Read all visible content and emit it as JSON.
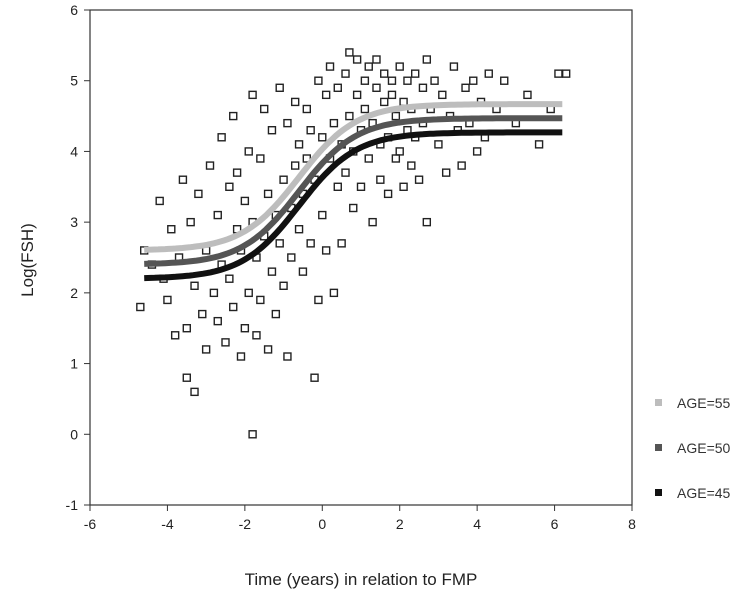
{
  "chart_data": {
    "type": "scatter",
    "xlabel": "Time (years) in relation to FMP",
    "ylabel": "Log(FSH)",
    "xlim": [
      -6,
      8
    ],
    "ylim": [
      -1,
      6
    ],
    "xticks": [
      -6,
      -4,
      -2,
      0,
      2,
      4,
      6,
      8
    ],
    "yticks": [
      -1,
      0,
      1,
      2,
      3,
      4,
      5,
      6
    ],
    "xtick_labels": [
      "-6",
      "-4",
      "-2",
      "0",
      "2",
      "4",
      "6",
      "8"
    ],
    "ytick_labels": [
      "-1",
      "0",
      "1",
      "2",
      "3",
      "4",
      "5",
      "6"
    ],
    "grid": false,
    "legend_position": "right",
    "series": [
      {
        "name": "AGE=55",
        "type": "line",
        "color": "#bdbdbd",
        "curve": {
          "lower": 2.6,
          "upper": 4.67,
          "midpoint": -0.6,
          "slope": 1.35
        },
        "x_range": [
          -4.6,
          6.2
        ]
      },
      {
        "name": "AGE=50",
        "type": "line",
        "color": "#555555",
        "curve": {
          "lower": 2.4,
          "upper": 4.47,
          "midpoint": -0.6,
          "slope": 1.35
        },
        "x_range": [
          -4.6,
          6.2
        ]
      },
      {
        "name": "AGE=45",
        "type": "line",
        "color": "#111111",
        "curve": {
          "lower": 2.2,
          "upper": 4.27,
          "midpoint": -0.6,
          "slope": 1.35
        },
        "x_range": [
          -4.6,
          6.2
        ]
      }
    ],
    "points": [
      [
        -4.7,
        1.8
      ],
      [
        -4.6,
        2.6
      ],
      [
        -4.4,
        2.4
      ],
      [
        -4.2,
        3.3
      ],
      [
        -4.1,
        2.2
      ],
      [
        -4.0,
        1.9
      ],
      [
        -3.9,
        2.9
      ],
      [
        -3.8,
        1.4
      ],
      [
        -3.7,
        2.5
      ],
      [
        -3.6,
        3.6
      ],
      [
        -3.5,
        0.8
      ],
      [
        -3.5,
        1.5
      ],
      [
        -3.4,
        3.0
      ],
      [
        -3.3,
        2.1
      ],
      [
        -3.3,
        0.6
      ],
      [
        -3.2,
        3.4
      ],
      [
        -3.1,
        1.7
      ],
      [
        -3.0,
        2.6
      ],
      [
        -3.0,
        1.2
      ],
      [
        -2.9,
        3.8
      ],
      [
        -2.8,
        2.0
      ],
      [
        -2.7,
        1.6
      ],
      [
        -2.7,
        3.1
      ],
      [
        -2.6,
        4.2
      ],
      [
        -2.6,
        2.4
      ],
      [
        -2.5,
        1.3
      ],
      [
        -2.4,
        3.5
      ],
      [
        -2.4,
        2.2
      ],
      [
        -2.3,
        4.5
      ],
      [
        -2.3,
        1.8
      ],
      [
        -2.2,
        2.9
      ],
      [
        -2.2,
        3.7
      ],
      [
        -2.1,
        1.1
      ],
      [
        -2.1,
        2.6
      ],
      [
        -2.0,
        3.3
      ],
      [
        -2.0,
        1.5
      ],
      [
        -1.9,
        4.0
      ],
      [
        -1.9,
        2.0
      ],
      [
        -1.8,
        0.0
      ],
      [
        -1.8,
        3.0
      ],
      [
        -1.8,
        4.8
      ],
      [
        -1.7,
        1.4
      ],
      [
        -1.7,
        2.5
      ],
      [
        -1.6,
        3.9
      ],
      [
        -1.6,
        1.9
      ],
      [
        -1.5,
        2.8
      ],
      [
        -1.5,
        4.6
      ],
      [
        -1.4,
        1.2
      ],
      [
        -1.4,
        3.4
      ],
      [
        -1.3,
        2.3
      ],
      [
        -1.3,
        4.3
      ],
      [
        -1.2,
        3.1
      ],
      [
        -1.2,
        1.7
      ],
      [
        -1.1,
        4.9
      ],
      [
        -1.1,
        2.7
      ],
      [
        -1.0,
        3.6
      ],
      [
        -1.0,
        2.1
      ],
      [
        -0.9,
        4.4
      ],
      [
        -0.9,
        1.1
      ],
      [
        -0.8,
        3.2
      ],
      [
        -0.8,
        2.5
      ],
      [
        -0.7,
        4.7
      ],
      [
        -0.7,
        3.8
      ],
      [
        -0.6,
        2.9
      ],
      [
        -0.6,
        4.1
      ],
      [
        -0.5,
        3.4
      ],
      [
        -0.5,
        2.3
      ],
      [
        -0.4,
        4.6
      ],
      [
        -0.4,
        3.9
      ],
      [
        -0.3,
        2.7
      ],
      [
        -0.3,
        4.3
      ],
      [
        -0.2,
        0.8
      ],
      [
        -0.2,
        3.6
      ],
      [
        -0.1,
        5.0
      ],
      [
        -0.1,
        1.9
      ],
      [
        0.0,
        4.2
      ],
      [
        0.0,
        3.1
      ],
      [
        0.1,
        4.8
      ],
      [
        0.1,
        2.6
      ],
      [
        0.2,
        3.9
      ],
      [
        0.2,
        5.2
      ],
      [
        0.3,
        4.4
      ],
      [
        0.3,
        2.0
      ],
      [
        0.4,
        3.5
      ],
      [
        0.4,
        4.9
      ],
      [
        0.5,
        4.1
      ],
      [
        0.5,
        2.7
      ],
      [
        0.6,
        5.1
      ],
      [
        0.6,
        3.7
      ],
      [
        0.7,
        4.5
      ],
      [
        0.7,
        5.4
      ],
      [
        0.8,
        4.0
      ],
      [
        0.8,
        3.2
      ],
      [
        0.9,
        4.8
      ],
      [
        0.9,
        5.3
      ],
      [
        1.0,
        4.3
      ],
      [
        1.0,
        3.5
      ],
      [
        1.1,
        5.0
      ],
      [
        1.1,
        4.6
      ],
      [
        1.2,
        3.9
      ],
      [
        1.2,
        5.2
      ],
      [
        1.3,
        4.4
      ],
      [
        1.3,
        3.0
      ],
      [
        1.4,
        4.9
      ],
      [
        1.4,
        5.3
      ],
      [
        1.5,
        4.1
      ],
      [
        1.5,
        3.6
      ],
      [
        1.6,
        4.7
      ],
      [
        1.6,
        5.1
      ],
      [
        1.7,
        4.2
      ],
      [
        1.7,
        3.4
      ],
      [
        1.8,
        4.8
      ],
      [
        1.8,
        5.0
      ],
      [
        1.9,
        3.9
      ],
      [
        1.9,
        4.5
      ],
      [
        2.0,
        5.2
      ],
      [
        2.0,
        4.0
      ],
      [
        2.1,
        3.5
      ],
      [
        2.1,
        4.7
      ],
      [
        2.2,
        4.3
      ],
      [
        2.2,
        5.0
      ],
      [
        2.3,
        3.8
      ],
      [
        2.3,
        4.6
      ],
      [
        2.4,
        5.1
      ],
      [
        2.4,
        4.2
      ],
      [
        2.5,
        3.6
      ],
      [
        2.6,
        4.9
      ],
      [
        2.6,
        4.4
      ],
      [
        2.7,
        5.3
      ],
      [
        2.7,
        3.0
      ],
      [
        2.8,
        4.6
      ],
      [
        2.9,
        5.0
      ],
      [
        3.0,
        4.1
      ],
      [
        3.1,
        4.8
      ],
      [
        3.2,
        3.7
      ],
      [
        3.3,
        4.5
      ],
      [
        3.4,
        5.2
      ],
      [
        3.5,
        4.3
      ],
      [
        3.6,
        3.8
      ],
      [
        3.7,
        4.9
      ],
      [
        3.8,
        4.4
      ],
      [
        3.9,
        5.0
      ],
      [
        4.0,
        4.0
      ],
      [
        4.1,
        4.7
      ],
      [
        4.2,
        4.2
      ],
      [
        4.3,
        5.1
      ],
      [
        4.5,
        4.6
      ],
      [
        4.7,
        5.0
      ],
      [
        5.0,
        4.4
      ],
      [
        5.3,
        4.8
      ],
      [
        5.6,
        4.1
      ],
      [
        5.9,
        4.6
      ],
      [
        6.1,
        5.1
      ],
      [
        6.3,
        5.1
      ]
    ]
  }
}
